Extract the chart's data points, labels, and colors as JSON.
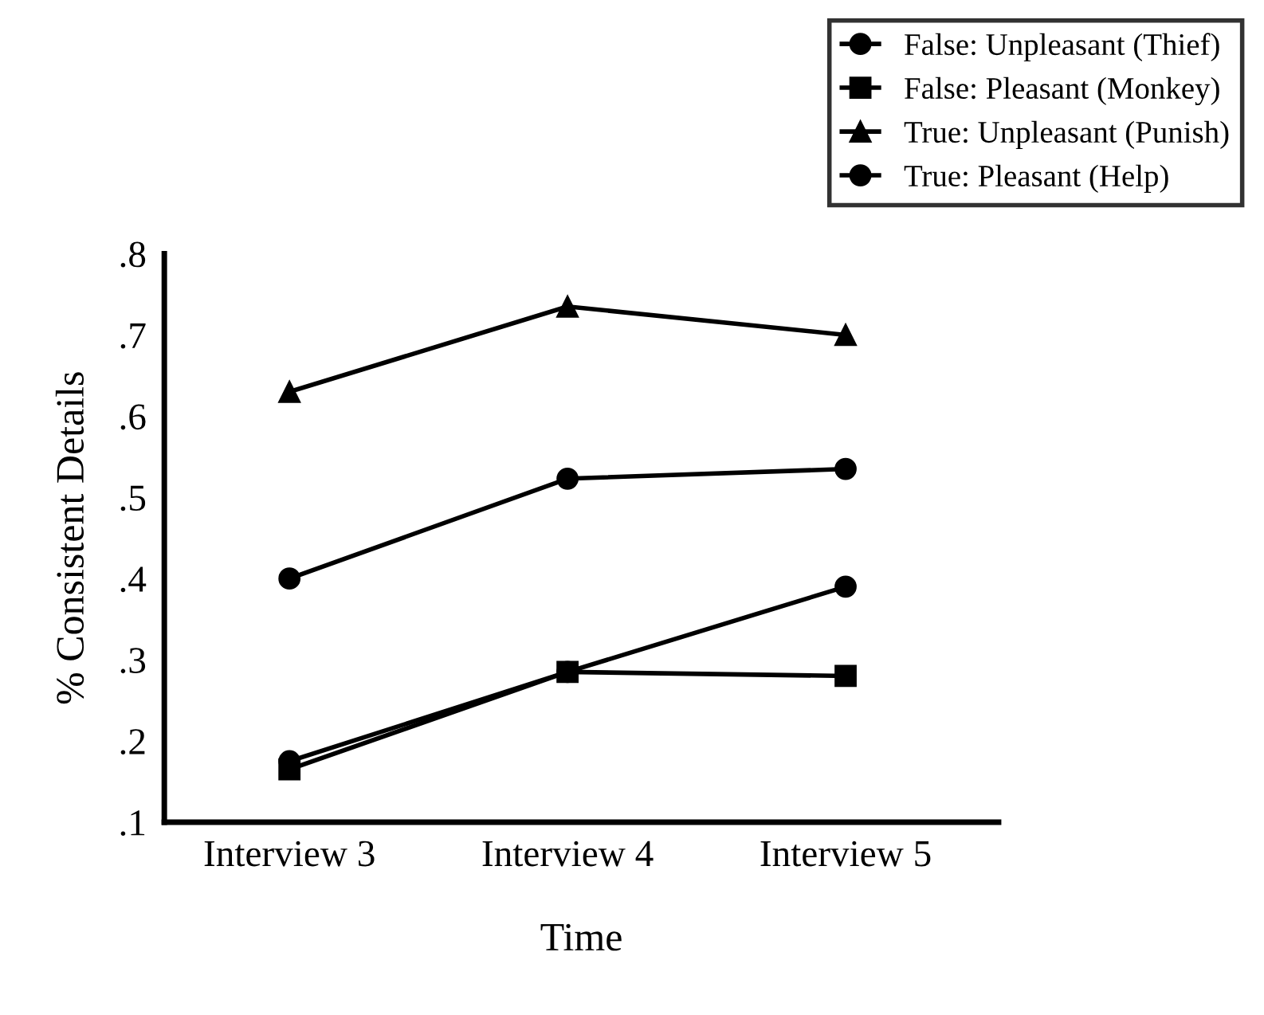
{
  "chart_data": {
    "type": "line",
    "xlabel": "Time",
    "ylabel": "% Consistent Details",
    "categories": [
      "Interview 3",
      "Interview 4",
      "Interview 5"
    ],
    "series": [
      {
        "name": "False: Unpleasant (Thief)",
        "color": "#000000",
        "marker": "circle",
        "values": [
          0.175,
          0.285,
          0.39
        ]
      },
      {
        "name": "False: Pleasant (Monkey)",
        "color": "#000000",
        "marker": "square",
        "values": [
          0.165,
          0.285,
          0.28
        ]
      },
      {
        "name": "True: Unpleasant (Punish)",
        "color": "#000000",
        "marker": "triangle",
        "values": [
          0.63,
          0.735,
          0.7
        ]
      },
      {
        "name": "True: Pleasant (Help)",
        "color": "#000000",
        "marker": "circle",
        "values": [
          0.4,
          0.523,
          0.535
        ]
      }
    ],
    "ylim": [
      0.1,
      0.8
    ],
    "yticks": [
      {
        "value": 0.1,
        "label": ".1"
      },
      {
        "value": 0.2,
        "label": ".2"
      },
      {
        "value": 0.3,
        "label": ".3"
      },
      {
        "value": 0.4,
        "label": ".4"
      },
      {
        "value": 0.5,
        "label": ".5"
      },
      {
        "value": 0.6,
        "label": ".6"
      },
      {
        "value": 0.7,
        "label": ".7"
      },
      {
        "value": 0.8,
        "label": ".8"
      }
    ],
    "grid": false,
    "legend": "top right",
    "line_style": "solid"
  }
}
